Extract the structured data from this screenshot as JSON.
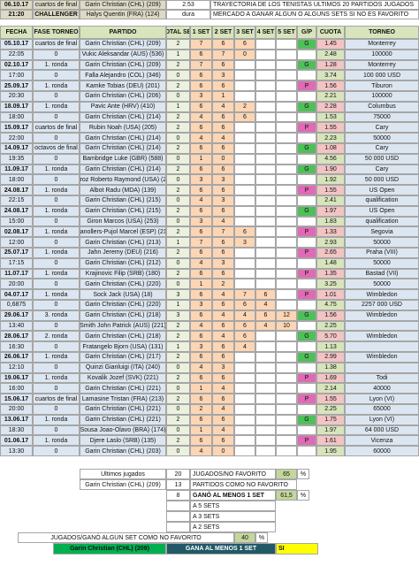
{
  "header": {
    "date": "06.10.17",
    "time": "21:20",
    "phase": "cuartos de final",
    "category": "CHALLENGER",
    "player1": "Garin Christian (CHL) (209)",
    "player2": "Halys Quentin (FRA) (124)",
    "odds": "2.53",
    "surface": "dura",
    "title": "TRAYECTORIA DE LOS TENISTAS ULTIMOS 20 PARTIDOS JUGADOS",
    "subtitle": "MERCADO A GANAR ALGUN O ALGUNS SETS SI NO ES FAVORITO"
  },
  "table": {
    "columns": [
      "FECHA",
      "FASE TORNEO",
      "PARTIDO",
      "TOTAL SET",
      "1 SET",
      "2 SET",
      "3 SET",
      "4 SET",
      "5 SET",
      "G/P",
      "CUOTA",
      "TORNEO"
    ],
    "rows": [
      [
        "05.10.17",
        "cuartos de final",
        "Garin Christian (CHL) (209)",
        "2",
        "7",
        "6",
        "6",
        null,
        null,
        "G",
        "1.45",
        "Monterrey"
      ],
      [
        "22:05",
        "0",
        "Vukic Aleksandar (AUS) (536)",
        "1",
        "6",
        "7",
        "0",
        null,
        null,
        null,
        "2.48",
        "100000"
      ],
      [
        "02.10.17",
        "1. ronda",
        "Garin Christian (CHL) (209)",
        "2",
        "7",
        "6",
        null,
        null,
        null,
        "G",
        "1.28",
        "Monterrey"
      ],
      [
        "17:00",
        "0",
        "Falla Alejandro (COL) (346)",
        "0",
        "6",
        "3",
        null,
        null,
        null,
        null,
        "3.74",
        "100 000 USD"
      ],
      [
        "25.09.17",
        "1. ronda",
        "Kamke Tobias (DEU) (201)",
        "2",
        "6",
        "6",
        null,
        null,
        null,
        "P",
        "1.56",
        "Tiburon"
      ],
      [
        "20:30",
        "0",
        "Garin Christian (CHL) (206)",
        "0",
        "3",
        "1",
        null,
        null,
        null,
        null,
        "2.21",
        "100000"
      ],
      [
        "18.09.17",
        "1. ronda",
        "Pavic Ante (HRV) (410)",
        "1",
        "6",
        "4",
        "2",
        null,
        null,
        "G",
        "2.28",
        "Columbus"
      ],
      [
        "18:00",
        "0",
        "Garin Christian (CHL) (214)",
        "2",
        "4",
        "6",
        "6",
        null,
        null,
        null,
        "1.53",
        "75000"
      ],
      [
        "15.09.17",
        "cuartos de final",
        "Rubin Noah (USA) (205)",
        "2",
        "6",
        "6",
        null,
        null,
        null,
        "P",
        "1.55",
        "Cary"
      ],
      [
        "22:00",
        "0",
        "Garin Christian (CHL) (214)",
        "0",
        "4",
        "4",
        null,
        null,
        null,
        null,
        "2.23",
        "50000"
      ],
      [
        "14.09.17",
        "octavos de final",
        "Garin Christian (CHL) (214)",
        "2",
        "6",
        "6",
        null,
        null,
        null,
        "G",
        "1.08",
        "Cary"
      ],
      [
        "19:35",
        "0",
        "Bambridge Luke (GBR) (588)",
        "0",
        "1",
        "0",
        null,
        null,
        null,
        null,
        "4.56",
        "50 000 USD"
      ],
      [
        "11.09.17",
        "1. ronda",
        "Garin Christian (CHL) (214)",
        "2",
        "6",
        "6",
        null,
        null,
        null,
        "G",
        "1.90",
        "Cary"
      ],
      [
        "18:00",
        "0",
        "Quiroz Roberto Raymond (USA) (256)",
        "0",
        "3",
        "3",
        null,
        null,
        null,
        null,
        "1.92",
        "50 000 USD"
      ],
      [
        "24.08.17",
        "1. ronda",
        "Albot Radu (MDA) (139)",
        "2",
        "6",
        "6",
        null,
        null,
        null,
        "P",
        "1.55",
        "US Open"
      ],
      [
        "22:15",
        "0",
        "Garin Christian (CHL) (215)",
        "0",
        "4",
        "3",
        null,
        null,
        null,
        null,
        "2.41",
        "qualification"
      ],
      [
        "24.08.17",
        "1. ronda",
        "Garin Christian (CHL) (215)",
        "2",
        "6",
        "6",
        null,
        null,
        null,
        "G",
        "1.97",
        "US Open"
      ],
      [
        "15:00",
        "0",
        "Giron Marcos (USA) (253)",
        "0",
        "3",
        "4",
        null,
        null,
        null,
        null,
        "1.83",
        "qualification"
      ],
      [
        "02.08.17",
        "1. ronda",
        "Granollers-Pujol Marcel (ESP) (217)",
        "2",
        "6",
        "7",
        "6",
        null,
        null,
        "P",
        "1.33",
        "Segovia"
      ],
      [
        "12:00",
        "0",
        "Garin Christian (CHL) (213)",
        "1",
        "7",
        "6",
        "3",
        null,
        null,
        null,
        "2.93",
        "50000"
      ],
      [
        "25.07.17",
        "1. ronda",
        "Jahn Jeremy (DEU) (216)",
        "2",
        "6",
        "6",
        null,
        null,
        null,
        "P",
        "2.65",
        "Praha (VIII)"
      ],
      [
        "17:15",
        "0",
        "Garin Christian (CHL) (212)",
        "0",
        "4",
        "3",
        null,
        null,
        null,
        null,
        "1.48",
        "50000"
      ],
      [
        "11.07.17",
        "1. ronda",
        "Krajinovic Filip (SRB) (180)",
        "2",
        "6",
        "6",
        null,
        null,
        null,
        "P",
        "1.35",
        "Bastad (VII)"
      ],
      [
        "20:00",
        "0",
        "Garin Christian (CHL) (220)",
        "0",
        "1",
        "2",
        null,
        null,
        null,
        null,
        "3.25",
        "50000"
      ],
      [
        "04.07.17",
        "1. ronda",
        "Sock Jack (USA) (18)",
        "3",
        "6",
        "4",
        "7",
        "6",
        null,
        "P",
        "1.01",
        "Wimbledon"
      ],
      [
        "0,6875",
        "0",
        "Garin Christian (CHL) (220)",
        "1",
        "3",
        "6",
        "6",
        "4",
        null,
        null,
        "4.75",
        "2257 000 USD"
      ],
      [
        "29.06.17",
        "3. ronda",
        "Garin Christian (CHL) (218)",
        "3",
        "6",
        "4",
        "4",
        "6",
        "12",
        "G",
        "1.56",
        "Wimbledon"
      ],
      [
        "13:40",
        "0",
        "Smith John Patrick (AUS) (221)",
        "2",
        "4",
        "6",
        "6",
        "4",
        "10",
        null,
        "2.25",
        null
      ],
      [
        "28.06.17",
        "2. ronda",
        "Garin Christian (CHL) (218)",
        "2",
        "6",
        "4",
        "6",
        null,
        null,
        "G",
        "5.70",
        "Wimbledon"
      ],
      [
        "16:30",
        "0",
        "Fratangelo Bjorn (USA) (131)",
        "1",
        "3",
        "6",
        "4",
        null,
        null,
        null,
        "1.13",
        null
      ],
      [
        "26.06.17",
        "1. ronda",
        "Garin Christian (CHL) (217)",
        "2",
        "6",
        "6",
        null,
        null,
        null,
        "G",
        "2.99",
        "Wimbledon"
      ],
      [
        "12:10",
        "0",
        "Quinzi Gianluigi (ITA) (240)",
        "0",
        "4",
        "3",
        null,
        null,
        null,
        null,
        "1.38",
        null
      ],
      [
        "19.06.17",
        "1. ronda",
        "Kovalik Jozef (SVK) (221)",
        "2",
        "6",
        "6",
        null,
        null,
        null,
        "P",
        "1.69",
        "Todi"
      ],
      [
        "16:00",
        "0",
        "Garin Christian (CHL) (221)",
        "0",
        "1",
        "4",
        null,
        null,
        null,
        null,
        "2.14",
        "40000"
      ],
      [
        "15.06.17",
        "cuartos de final",
        "Lamasine Tristan (FRA) (213)",
        "2",
        "6",
        "6",
        null,
        null,
        null,
        "P",
        "1.55",
        "Lyon (VI)"
      ],
      [
        "20:00",
        "0",
        "Garin Christian (CHL) (221)",
        "0",
        "2",
        "4",
        null,
        null,
        null,
        null,
        "2.25",
        "65000"
      ],
      [
        "13.06.17",
        "1. ronda",
        "Garin Christian (CHL) (221)",
        "2",
        "6",
        "6",
        null,
        null,
        null,
        "G",
        "1.75",
        "Lyon (VI)"
      ],
      [
        "18:30",
        "0",
        "Sousa Joao-Olavo (BRA) (174)",
        "0",
        "1",
        "4",
        null,
        null,
        null,
        null,
        "1.97",
        "64 000 USD"
      ],
      [
        "01.06.17",
        "1. ronda",
        "Djere Laslo (SRB) (135)",
        "2",
        "6",
        "6",
        null,
        null,
        null,
        "P",
        "1.61",
        "Vicenza"
      ],
      [
        "13:30",
        "0",
        "Garin Christian (CHL) (203)",
        "0",
        "4",
        "0",
        null,
        null,
        null,
        null,
        "1.95",
        "60000"
      ]
    ]
  },
  "summary": {
    "played_label": "Ultimos jugados",
    "played": "20",
    "no_fav_label": "JUGADOS/NO FAVORITO",
    "no_fav_pct": "65",
    "pct1": "%",
    "player": "Garin Christian (CHL) (209)",
    "no_fav_count": "13",
    "no_fav_count_label": "PARTIDOS COMO NO FAVORITO",
    "won_set": "8",
    "won_set_label": "GANÓ AL MENOS 1 SET",
    "won_set_pct": "61,5",
    "pct2": "%",
    "five_sets": "A 5 SETS",
    "three_sets": "A 3 SETS",
    "two_sets": "A 2 SETS",
    "won_set_no_fav_label": "JUGADOS/GANÓ ALGUN SET COMO NO FAVORITO",
    "won_set_no_fav_pct": "40",
    "pct3": "%",
    "final_player": "Garin Christian (CHL) (209)",
    "final_label": "GANA AL MENOS 1 SET",
    "final_value": "SI"
  }
}
